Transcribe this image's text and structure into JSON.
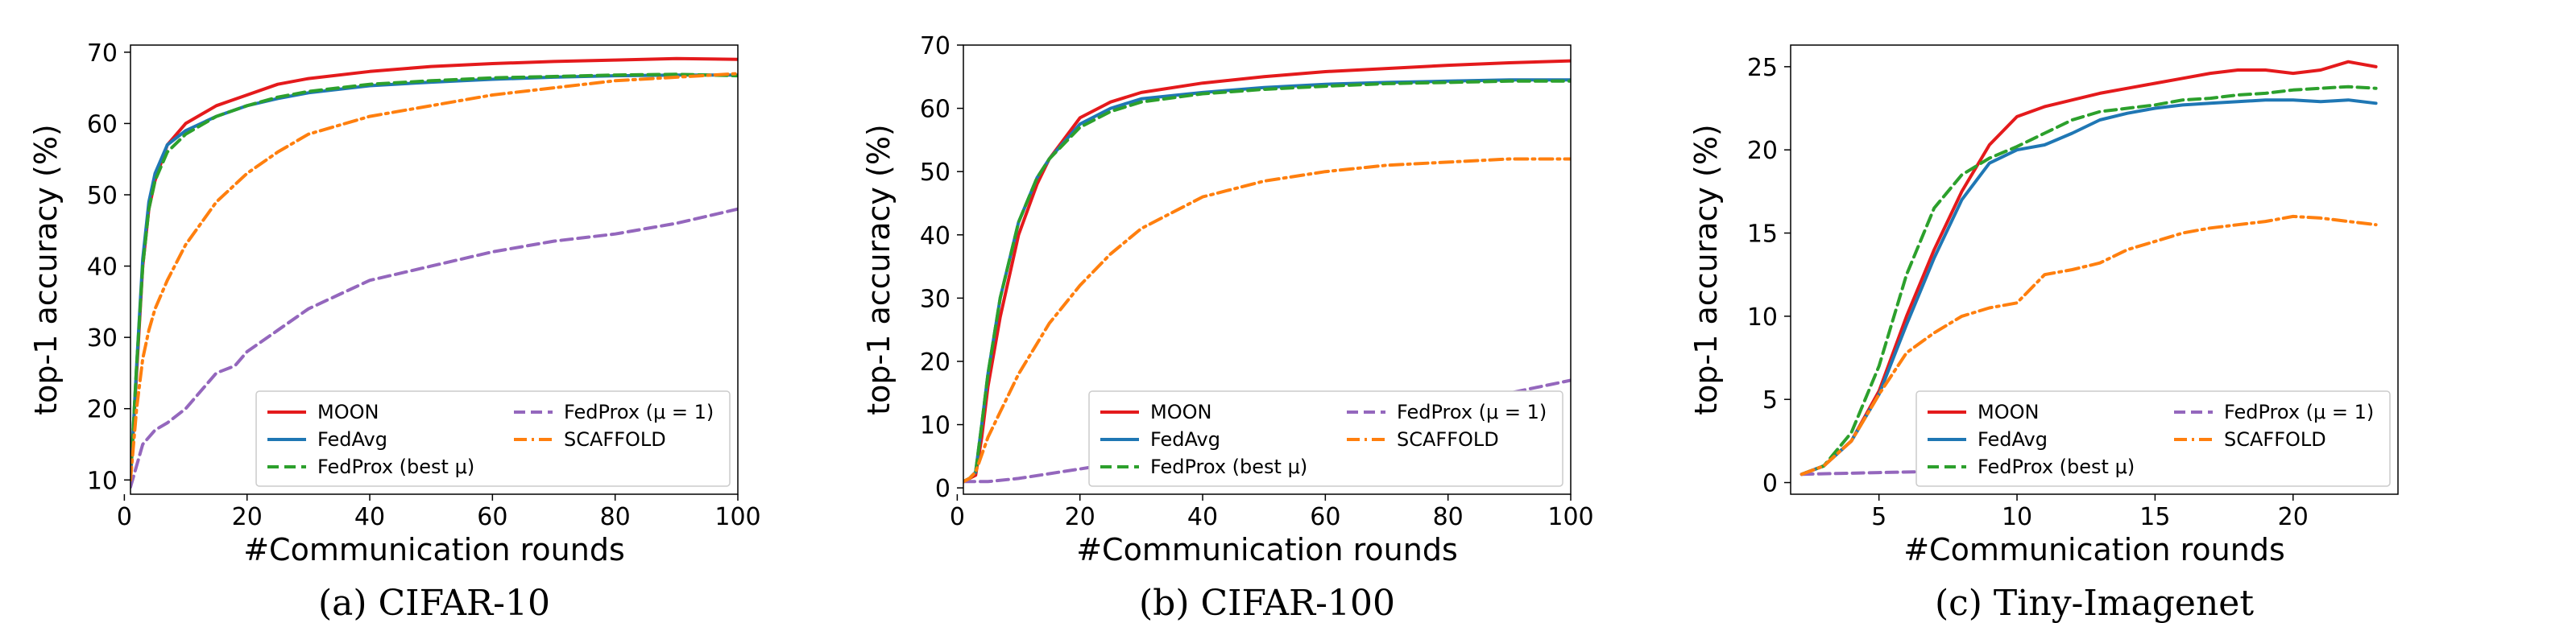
{
  "legend": {
    "moon": "MOON",
    "fedavg": "FedAvg",
    "fedprox_best": "FedProx (best μ)",
    "fedprox_mu1": "FedProx (μ = 1)",
    "scaffold": "SCAFFOLD"
  },
  "colors": {
    "MOON": "#e41a1c",
    "FedAvg": "#1f77b4",
    "FedProx (best μ)": "#2ca02c",
    "FedProx (μ = 1)": "#9467bd",
    "SCAFFOLD": "#ff7f0e"
  },
  "chart_data": [
    {
      "type": "line",
      "caption": "(a) CIFAR-10",
      "xlabel": "#Communication rounds",
      "ylabel": "top-1 accuracy (%)",
      "xlim": [
        1,
        100
      ],
      "ylim": [
        8,
        71
      ],
      "xticks": [
        0,
        20,
        40,
        60,
        80,
        100
      ],
      "yticks": [
        10,
        20,
        30,
        40,
        50,
        60,
        70
      ],
      "legend_position": "lower-right",
      "series": [
        {
          "name": "MOON",
          "style": "solid",
          "x": [
            1,
            2,
            3,
            4,
            5,
            7,
            10,
            15,
            20,
            25,
            30,
            40,
            50,
            60,
            70,
            80,
            90,
            100
          ],
          "y": [
            10,
            25,
            40,
            48,
            52,
            57,
            60,
            62.5,
            64,
            65.5,
            66.3,
            67.3,
            68,
            68.4,
            68.7,
            68.9,
            69.1,
            69
          ]
        },
        {
          "name": "FedAvg",
          "style": "solid",
          "x": [
            1,
            2,
            3,
            4,
            5,
            7,
            10,
            15,
            20,
            25,
            30,
            40,
            50,
            60,
            70,
            80,
            90,
            100
          ],
          "y": [
            10,
            26,
            41,
            49,
            53,
            57,
            59,
            61,
            62.5,
            63.5,
            64.3,
            65.3,
            65.8,
            66.2,
            66.5,
            66.7,
            66.8,
            66.8
          ]
        },
        {
          "name": "FedProx (best μ)",
          "style": "dashed",
          "x": [
            1,
            2,
            3,
            4,
            5,
            7,
            10,
            15,
            20,
            25,
            30,
            40,
            50,
            60,
            70,
            80,
            90,
            100
          ],
          "y": [
            10,
            26,
            40,
            48,
            52,
            56,
            58.5,
            61,
            62.5,
            63.7,
            64.5,
            65.5,
            66,
            66.4,
            66.6,
            66.8,
            66.9,
            66.7
          ]
        },
        {
          "name": "FedProx (μ = 1)",
          "style": "dashed",
          "x": [
            1,
            2,
            3,
            5,
            7,
            10,
            13,
            15,
            18,
            20,
            25,
            30,
            35,
            40,
            50,
            60,
            70,
            80,
            90,
            95,
            100
          ],
          "y": [
            9,
            12,
            15,
            17,
            18,
            20,
            23,
            25,
            26,
            28,
            31,
            34,
            36,
            38,
            40,
            42,
            43.5,
            44.5,
            46,
            47,
            48
          ]
        },
        {
          "name": "SCAFFOLD",
          "style": "dashdot",
          "x": [
            1,
            2,
            3,
            4,
            5,
            7,
            10,
            15,
            20,
            25,
            30,
            40,
            50,
            60,
            70,
            80,
            90,
            100
          ],
          "y": [
            10,
            20,
            27,
            31,
            34,
            38,
            43,
            49,
            53,
            56,
            58.5,
            61,
            62.5,
            64,
            65,
            66,
            66.5,
            67
          ]
        }
      ]
    },
    {
      "type": "line",
      "caption": "(b) CIFAR-100",
      "xlabel": "#Communication rounds",
      "ylabel": "top-1 accuracy (%)",
      "xlim": [
        1,
        100
      ],
      "ylim": [
        -1,
        70
      ],
      "xticks": [
        0,
        20,
        40,
        60,
        80,
        100
      ],
      "yticks": [
        0,
        10,
        20,
        30,
        40,
        50,
        60,
        70
      ],
      "legend_position": "lower-right",
      "series": [
        {
          "name": "MOON",
          "style": "solid",
          "x": [
            1,
            2,
            3,
            4,
            5,
            7,
            10,
            13,
            15,
            20,
            25,
            30,
            40,
            50,
            60,
            70,
            80,
            90,
            100
          ],
          "y": [
            1,
            1.5,
            2,
            8,
            16,
            27,
            40,
            48,
            52,
            58.5,
            61,
            62.5,
            64,
            65,
            65.8,
            66.3,
            66.8,
            67.2,
            67.5
          ]
        },
        {
          "name": "FedAvg",
          "style": "solid",
          "x": [
            1,
            2,
            3,
            4,
            5,
            7,
            10,
            13,
            15,
            20,
            25,
            30,
            40,
            50,
            60,
            70,
            80,
            90,
            100
          ],
          "y": [
            1,
            1.5,
            2.5,
            10,
            18,
            30,
            42,
            49,
            52,
            57.5,
            60,
            61.5,
            62.5,
            63.3,
            63.8,
            64.1,
            64.3,
            64.5,
            64.5
          ]
        },
        {
          "name": "FedProx (best μ)",
          "style": "dashed",
          "x": [
            1,
            2,
            3,
            4,
            5,
            7,
            10,
            13,
            15,
            20,
            25,
            30,
            40,
            50,
            60,
            70,
            80,
            90,
            100
          ],
          "y": [
            1,
            1.5,
            2.5,
            10,
            18,
            30,
            42,
            49,
            52,
            57,
            59.5,
            61,
            62.3,
            63,
            63.5,
            63.9,
            64.1,
            64.3,
            64.3
          ]
        },
        {
          "name": "FedProx (μ = 1)",
          "style": "dashed",
          "x": [
            1,
            5,
            10,
            20,
            30,
            40,
            50,
            60,
            70,
            80,
            90,
            95,
            100
          ],
          "y": [
            1,
            1,
            1.5,
            3,
            4.5,
            6,
            8,
            10,
            11.5,
            13,
            15,
            16,
            17
          ]
        },
        {
          "name": "SCAFFOLD",
          "style": "dashdot",
          "x": [
            1,
            2,
            3,
            5,
            7,
            10,
            15,
            20,
            25,
            30,
            40,
            50,
            60,
            70,
            80,
            90,
            100
          ],
          "y": [
            1,
            1.5,
            2.5,
            8,
            12,
            18,
            26,
            32,
            37,
            41,
            46,
            48.5,
            50,
            51,
            51.5,
            52,
            52
          ]
        }
      ]
    },
    {
      "type": "line",
      "caption": "(c) Tiny-Imagenet",
      "xlabel": "#Communication rounds",
      "ylabel": "top-1 accuracy (%)",
      "xlim": [
        1.8,
        23.8
      ],
      "ylim": [
        -0.7,
        26.3
      ],
      "xticks": [
        5,
        10,
        15,
        20
      ],
      "yticks": [
        0,
        5,
        10,
        15,
        20,
        25
      ],
      "legend_position": "lower-right",
      "series": [
        {
          "name": "MOON",
          "style": "solid",
          "x": [
            2.2,
            3,
            4,
            5,
            6,
            7,
            8,
            9,
            10,
            11,
            12,
            13,
            14,
            15,
            16,
            17,
            18,
            19,
            20,
            21,
            22,
            23
          ],
          "y": [
            0.5,
            1,
            2.5,
            5.5,
            10,
            14,
            17.5,
            20.3,
            22,
            22.6,
            23,
            23.4,
            23.7,
            24,
            24.3,
            24.6,
            24.8,
            24.8,
            24.6,
            24.8,
            25.3,
            25
          ]
        },
        {
          "name": "FedAvg",
          "style": "solid",
          "x": [
            2.2,
            3,
            4,
            5,
            6,
            7,
            8,
            9,
            10,
            11,
            12,
            13,
            14,
            15,
            16,
            17,
            18,
            19,
            20,
            21,
            22,
            23
          ],
          "y": [
            0.5,
            1,
            2.5,
            5.3,
            9.5,
            13.5,
            17,
            19.2,
            20,
            20.3,
            21,
            21.8,
            22.2,
            22.5,
            22.7,
            22.8,
            22.9,
            23,
            23,
            22.9,
            23,
            22.8
          ]
        },
        {
          "name": "FedProx (best μ)",
          "style": "dashed",
          "x": [
            2.2,
            3,
            4,
            5,
            6,
            7,
            8,
            9,
            10,
            11,
            12,
            13,
            14,
            15,
            16,
            17,
            18,
            19,
            20,
            21,
            22,
            23
          ],
          "y": [
            0.5,
            1,
            3,
            7,
            12.5,
            16.5,
            18.5,
            19.5,
            20.2,
            21,
            21.8,
            22.3,
            22.5,
            22.7,
            23,
            23.1,
            23.3,
            23.4,
            23.6,
            23.7,
            23.8,
            23.7
          ]
        },
        {
          "name": "FedProx (μ = 1)",
          "style": "dashed",
          "x": [
            2.2,
            5,
            8,
            11,
            14,
            17,
            20,
            23
          ],
          "y": [
            0.5,
            0.6,
            0.7,
            0.8,
            0.85,
            0.9,
            0.95,
            1.0
          ]
        },
        {
          "name": "SCAFFOLD",
          "style": "dashdot",
          "x": [
            2.2,
            3,
            4,
            5,
            6,
            7,
            8,
            9,
            10,
            11,
            12,
            13,
            14,
            15,
            16,
            17,
            18,
            19,
            20,
            21,
            22,
            23
          ],
          "y": [
            0.5,
            1,
            2.5,
            5.3,
            7.8,
            9,
            10,
            10.5,
            10.8,
            12.5,
            12.8,
            13.2,
            14,
            14.5,
            15,
            15.3,
            15.5,
            15.7,
            16,
            15.9,
            15.7,
            15.5
          ]
        }
      ]
    }
  ]
}
